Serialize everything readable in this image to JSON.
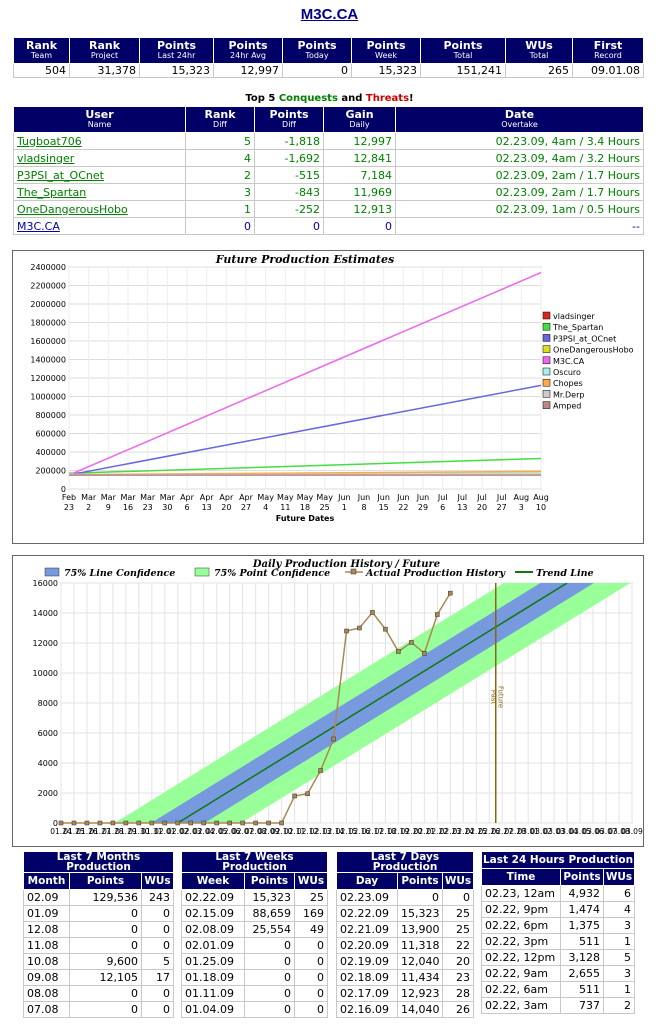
{
  "title": "M3C.CA",
  "stats": {
    "headers": [
      {
        "main": "Rank",
        "sub": "Team"
      },
      {
        "main": "Rank",
        "sub": "Project"
      },
      {
        "main": "Points",
        "sub": "Last 24hr"
      },
      {
        "main": "Points",
        "sub": "24hr Avg"
      },
      {
        "main": "Points",
        "sub": "Today"
      },
      {
        "main": "Points",
        "sub": "Week"
      },
      {
        "main": "Points",
        "sub": "Total"
      },
      {
        "main": "WUs",
        "sub": "Total"
      },
      {
        "main": "First",
        "sub": "Record"
      }
    ],
    "values": [
      "504",
      "31,378",
      "15,323",
      "12,997",
      "0",
      "15,323",
      "151,241",
      "265",
      "09.01.08"
    ]
  },
  "conquests": {
    "prefix": "Top 5 ",
    "conquests": "Conquests",
    "and": " and ",
    "threats": "Threats",
    "suffix": "!"
  },
  "users": {
    "headers": [
      {
        "main": "User",
        "sub": "Name"
      },
      {
        "main": "Rank",
        "sub": "Diff"
      },
      {
        "main": "Points",
        "sub": "Diff"
      },
      {
        "main": "Gain",
        "sub": "Daily"
      },
      {
        "main": "Date",
        "sub": "Overtake"
      }
    ],
    "rows": [
      {
        "name": "Tugboat706",
        "rank": "5",
        "points": "-1,818",
        "gain": "12,997",
        "date": "02.23.09, 4am / 3.4 Hours"
      },
      {
        "name": "vladsinger",
        "rank": "4",
        "points": "-1,692",
        "gain": "12,841",
        "date": "02.23.09, 4am / 3.2 Hours"
      },
      {
        "name": "P3PSI_at_OCnet",
        "rank": "2",
        "points": "-515",
        "gain": "7,184",
        "date": "02.23.09, 2am / 1.7 Hours"
      },
      {
        "name": "The_Spartan",
        "rank": "3",
        "points": "-843",
        "gain": "11,969",
        "date": "02.23.09, 2am / 1.7 Hours"
      },
      {
        "name": "OneDangerousHobo",
        "rank": "1",
        "points": "-252",
        "gain": "12,913",
        "date": "02.23.09, 1am / 0.5 Hours"
      },
      {
        "name": "M3C.CA",
        "rank": "0",
        "points": "0",
        "gain": "0",
        "date": "--",
        "self": true
      }
    ]
  },
  "chart_data": [
    {
      "type": "line",
      "title": "Future Production Estimates",
      "xlabel": "Future Dates",
      "ylim": [
        0,
        2400000
      ],
      "yticks": [
        0,
        200000,
        400000,
        600000,
        800000,
        1000000,
        1200000,
        1400000,
        1600000,
        1800000,
        2000000,
        2200000,
        2400000
      ],
      "x_ticks": [
        [
          "Feb",
          "23"
        ],
        [
          "Mar",
          "2"
        ],
        [
          "Mar",
          "9"
        ],
        [
          "Mar",
          "16"
        ],
        [
          "Mar",
          "23"
        ],
        [
          "Mar",
          "30"
        ],
        [
          "Apr",
          "6"
        ],
        [
          "Apr",
          "13"
        ],
        [
          "Apr",
          "20"
        ],
        [
          "Apr",
          "27"
        ],
        [
          "May",
          "4"
        ],
        [
          "May",
          "11"
        ],
        [
          "May",
          "18"
        ],
        [
          "May",
          "25"
        ],
        [
          "Jun",
          "1"
        ],
        [
          "Jun",
          "8"
        ],
        [
          "Jun",
          "15"
        ],
        [
          "Jun",
          "22"
        ],
        [
          "Jun",
          "29"
        ],
        [
          "Jul",
          "6"
        ],
        [
          "Jul",
          "13"
        ],
        [
          "Jul",
          "20"
        ],
        [
          "Jul",
          "27"
        ],
        [
          "Aug",
          "3"
        ],
        [
          "Aug",
          "10"
        ]
      ],
      "legend_placement": "right",
      "series": [
        {
          "name": "vladsinger",
          "color": "#dd2222",
          "start": 152000,
          "end": 162000
        },
        {
          "name": "The_Spartan",
          "color": "#44dd44",
          "start": 170000,
          "end": 330000
        },
        {
          "name": "P3PSI_at_OCnet",
          "color": "#6666dd",
          "start": 152000,
          "end": 1120000
        },
        {
          "name": "OneDangerousHobo",
          "color": "#dddd22",
          "start": 150000,
          "end": 175000
        },
        {
          "name": "M3C.CA",
          "color": "#ee66ee",
          "start": 151241,
          "end": 2340000
        },
        {
          "name": "Oscuro",
          "color": "#aaeeee",
          "start": 158000,
          "end": 170000
        },
        {
          "name": "Chopes",
          "color": "#ffaa44",
          "start": 155000,
          "end": 190000
        },
        {
          "name": "Mr.Derp",
          "color": "#cccccc",
          "start": 153000,
          "end": 160000
        },
        {
          "name": "Amped",
          "color": "#bb8888",
          "start": 150000,
          "end": 150000
        }
      ]
    },
    {
      "type": "line",
      "title": "Daily Production History / Future",
      "ylim": [
        0,
        16000
      ],
      "yticks": [
        0,
        2000,
        4000,
        6000,
        8000,
        10000,
        12000,
        14000,
        16000
      ],
      "x_ticks": [
        "01.24",
        "01.25",
        "01.26",
        "01.27",
        "01.28",
        "01.29",
        "01.30",
        "01.31",
        "02.01",
        "02.02",
        "02.03",
        "02.04",
        "02.05",
        "02.06",
        "02.07",
        "02.08",
        "02.09",
        "02.10",
        "02.11",
        "02.12",
        "02.13",
        "02.14",
        "02.15",
        "02.16",
        "02.17",
        "02.18",
        "02.19",
        "02.20",
        "02.21",
        "02.22",
        "02.23",
        "02.24",
        "02.25",
        "02.26",
        "02.27",
        "02.28",
        "03.01",
        "03.02",
        "03.03",
        "03.04",
        "03.05",
        "03.06",
        "03.07",
        "03.08",
        "03.09"
      ],
      "legend": [
        "75% Line Confidence",
        "75% Point Confidence",
        "Actual Production History",
        "Trend Line"
      ],
      "colors": {
        "line_conf": "#7799dd",
        "point_conf": "#99ff99",
        "actual": "#aa8855",
        "trend": "#117711",
        "divider": "#886611"
      },
      "actual": [
        0,
        0,
        0,
        0,
        0,
        0,
        0,
        0,
        0,
        0,
        0,
        0,
        0,
        0,
        0,
        0,
        0,
        0,
        1800,
        1950,
        3500,
        5600,
        12800,
        13000,
        14040,
        12923,
        11434,
        12040,
        11318,
        13900,
        15323
      ],
      "trend": {
        "x0": 9,
        "y0": 0,
        "x1": 39,
        "y1": 16000
      },
      "divider_x": 33.5,
      "past_label": "Past",
      "future_label": "Future"
    }
  ],
  "months": {
    "title": "Last 7 Months Production",
    "cols": [
      "Month",
      "Points",
      "WUs"
    ],
    "rows": [
      [
        "02.09",
        "129,536",
        "243"
      ],
      [
        "01.09",
        "0",
        "0"
      ],
      [
        "12.08",
        "0",
        "0"
      ],
      [
        "11.08",
        "0",
        "0"
      ],
      [
        "10.08",
        "9,600",
        "5"
      ],
      [
        "09.08",
        "12,105",
        "17"
      ],
      [
        "08.08",
        "0",
        "0"
      ],
      [
        "07.08",
        "0",
        "0"
      ]
    ]
  },
  "weeks": {
    "title": "Last 7 Weeks Production",
    "cols": [
      "Week",
      "Points",
      "WUs"
    ],
    "rows": [
      [
        "02.22.09",
        "15,323",
        "25"
      ],
      [
        "02.15.09",
        "88,659",
        "169"
      ],
      [
        "02.08.09",
        "25,554",
        "49"
      ],
      [
        "02.01.09",
        "0",
        "0"
      ],
      [
        "01.25.09",
        "0",
        "0"
      ],
      [
        "01.18.09",
        "0",
        "0"
      ],
      [
        "01.11.09",
        "0",
        "0"
      ],
      [
        "01.04.09",
        "0",
        "0"
      ]
    ]
  },
  "days": {
    "title": "Last 7 Days Production",
    "cols": [
      "Day",
      "Points",
      "WUs"
    ],
    "rows": [
      [
        "02.23.09",
        "0",
        "0"
      ],
      [
        "02.22.09",
        "15,323",
        "25"
      ],
      [
        "02.21.09",
        "13,900",
        "25"
      ],
      [
        "02.20.09",
        "11,318",
        "22"
      ],
      [
        "02.19.09",
        "12,040",
        "20"
      ],
      [
        "02.18.09",
        "11,434",
        "23"
      ],
      [
        "02.17.09",
        "12,923",
        "28"
      ],
      [
        "02.16.09",
        "14,040",
        "26"
      ]
    ]
  },
  "hours": {
    "title": "Last 24 Hours Production",
    "cols": [
      "Time",
      "Points",
      "WUs"
    ],
    "rows": [
      [
        "02.23, 12am",
        "4,932",
        "6"
      ],
      [
        "02.22, 9pm",
        "1,474",
        "4"
      ],
      [
        "02.22, 6pm",
        "1,375",
        "3"
      ],
      [
        "02.22, 3pm",
        "511",
        "1"
      ],
      [
        "02.22, 12pm",
        "3,128",
        "5"
      ],
      [
        "02.22, 9am",
        "2,655",
        "3"
      ],
      [
        "02.22, 6am",
        "511",
        "1"
      ],
      [
        "02.22, 3am",
        "737",
        "2"
      ]
    ]
  }
}
